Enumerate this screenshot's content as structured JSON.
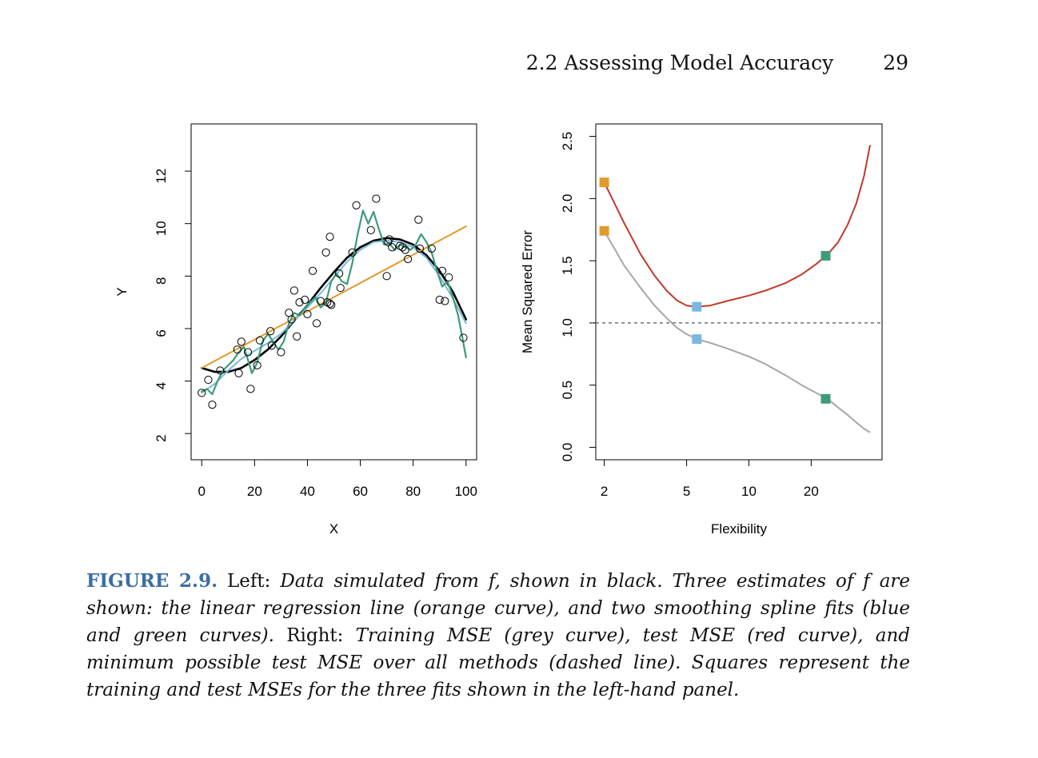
{
  "header": {
    "section": "2.2 Assessing Model Accuracy",
    "page_number": "29"
  },
  "caption": {
    "figure_label": "FIGURE 2.9.",
    "left_word": "Left:",
    "left_text": "Data simulated from f, shown in black. Three estimates of f are shown: the linear regression line (orange curve), and two smoothing spline fits (blue and green curves).",
    "right_word": "Right:",
    "right_text": "Training MSE (grey curve), test MSE (red curve), and minimum possible test MSE over all methods (dashed line). Squares represent the training and test MSEs for the three fits shown in the left-hand panel."
  },
  "colors": {
    "black": "#000000",
    "orange": "#e09b2d",
    "blue": "#7ab8de",
    "green": "#3e9a7a",
    "red": "#c0392b",
    "grey": "#a6a6a6",
    "caption_label": "#3a6ea5"
  },
  "chart_data": [
    {
      "type": "scatter",
      "xlabel": "X",
      "ylabel": "Y",
      "xlim": [
        -4,
        104
      ],
      "ylim": [
        1,
        13.8
      ],
      "xticks": [
        0,
        20,
        40,
        60,
        80,
        100
      ],
      "yticks": [
        2,
        4,
        6,
        8,
        10,
        12
      ],
      "points": [
        [
          0,
          3.55
        ],
        [
          2.5,
          4.05
        ],
        [
          4,
          3.1
        ],
        [
          7,
          4.4
        ],
        [
          13.5,
          5.2
        ],
        [
          14,
          4.3
        ],
        [
          15,
          5.5
        ],
        [
          17.5,
          5.1
        ],
        [
          18.5,
          3.7
        ],
        [
          21,
          4.6
        ],
        [
          22,
          5.55
        ],
        [
          26,
          5.9
        ],
        [
          26.5,
          5.35
        ],
        [
          30,
          5.1
        ],
        [
          33,
          6.6
        ],
        [
          34,
          6.35
        ],
        [
          35,
          7.45
        ],
        [
          36,
          5.7
        ],
        [
          37,
          7.0
        ],
        [
          39,
          7.1
        ],
        [
          40,
          6.55
        ],
        [
          42,
          8.2
        ],
        [
          43.5,
          6.2
        ],
        [
          45,
          7.05
        ],
        [
          47,
          8.9
        ],
        [
          47.5,
          7.0
        ],
        [
          48.5,
          6.95
        ],
        [
          48.5,
          9.5
        ],
        [
          49,
          6.9
        ],
        [
          52,
          8.1
        ],
        [
          52.5,
          7.55
        ],
        [
          57,
          8.9
        ],
        [
          58.5,
          10.7
        ],
        [
          64,
          9.75
        ],
        [
          66,
          10.95
        ],
        [
          70,
          8.0
        ],
        [
          70.5,
          9.3
        ],
        [
          71,
          9.4
        ],
        [
          72,
          9.1
        ],
        [
          75,
          9.15
        ],
        [
          76,
          9.1
        ],
        [
          77,
          9.0
        ],
        [
          78,
          8.65
        ],
        [
          82,
          10.15
        ],
        [
          82.5,
          9.05
        ],
        [
          87,
          9.05
        ],
        [
          90,
          7.1
        ],
        [
          91,
          8.2
        ],
        [
          92,
          7.05
        ],
        [
          93.5,
          7.95
        ],
        [
          99,
          5.65
        ]
      ],
      "series": [
        {
          "name": "f",
          "color": "black",
          "x": [
            0,
            5,
            10,
            15,
            20,
            25,
            30,
            35,
            40,
            45,
            50,
            55,
            60,
            65,
            70,
            75,
            80,
            85,
            90,
            95,
            100
          ],
          "y": [
            4.5,
            4.35,
            4.35,
            4.5,
            4.8,
            5.2,
            5.7,
            6.3,
            6.9,
            7.55,
            8.15,
            8.7,
            9.1,
            9.35,
            9.45,
            9.4,
            9.2,
            8.8,
            8.2,
            7.4,
            6.35
          ]
        },
        {
          "name": "linear regression",
          "color": "orange",
          "x": [
            0,
            100
          ],
          "y": [
            4.5,
            9.9
          ]
        },
        {
          "name": "smoothing spline (blue)",
          "color": "blue",
          "x": [
            0,
            5,
            10,
            15,
            20,
            25,
            30,
            35,
            40,
            45,
            50,
            55,
            60,
            65,
            70,
            75,
            80,
            85,
            90,
            95,
            100
          ],
          "y": [
            3.55,
            3.9,
            4.4,
            4.85,
            5.15,
            5.45,
            5.8,
            6.3,
            6.8,
            7.35,
            7.95,
            8.55,
            9.0,
            9.3,
            9.35,
            9.3,
            9.1,
            8.7,
            8.0,
            7.15,
            6.2
          ]
        },
        {
          "name": "smoothing spline (green)",
          "color": "green",
          "x": [
            0,
            2,
            4,
            6,
            8,
            10,
            12,
            14,
            16,
            17.5,
            19,
            21,
            23,
            25,
            27,
            29,
            31,
            33,
            35,
            37,
            39,
            41,
            43,
            45,
            47,
            49,
            51,
            53,
            55,
            57,
            59,
            61,
            63,
            65,
            67,
            69,
            71,
            73,
            75,
            77,
            79,
            81,
            83,
            85,
            87,
            89,
            91,
            93,
            95,
            97,
            100
          ],
          "y": [
            3.6,
            3.7,
            3.5,
            4.0,
            4.4,
            4.6,
            4.8,
            5.1,
            5.3,
            4.8,
            4.3,
            4.7,
            5.5,
            5.8,
            5.5,
            5.2,
            5.5,
            6.2,
            6.6,
            6.5,
            6.8,
            7.0,
            7.2,
            6.8,
            7.0,
            7.8,
            8.1,
            7.8,
            7.7,
            8.5,
            9.6,
            10.5,
            10.0,
            10.45,
            9.8,
            9.2,
            9.25,
            9.0,
            9.2,
            9.1,
            9.0,
            9.2,
            9.6,
            9.3,
            8.9,
            8.2,
            7.6,
            7.8,
            7.2,
            6.5,
            4.9
          ]
        }
      ]
    },
    {
      "type": "line",
      "xlabel": "Flexibility",
      "ylabel": "Mean Squared Error",
      "x_scale": "log",
      "xlim": [
        1.82,
        44
      ],
      "ylim": [
        -0.1,
        2.6
      ],
      "xticks": [
        2,
        5,
        10,
        20
      ],
      "yticks": [
        "0.0",
        "0.5",
        "1.0",
        "1.5",
        "2.0",
        "2.5"
      ],
      "hline": {
        "y": 1.0,
        "style": "dashed"
      },
      "series": [
        {
          "name": "test MSE",
          "color": "red",
          "x": [
            2,
            2.5,
            3,
            3.5,
            4,
            4.5,
            5,
            5.6,
            6.5,
            8,
            10,
            12,
            15,
            18,
            21,
            24,
            27,
            30,
            33,
            36,
            38.5
          ],
          "y": [
            2.13,
            1.8,
            1.55,
            1.38,
            1.26,
            1.18,
            1.14,
            1.13,
            1.14,
            1.18,
            1.22,
            1.26,
            1.32,
            1.39,
            1.47,
            1.55,
            1.65,
            1.79,
            1.96,
            2.18,
            2.43
          ]
        },
        {
          "name": "training MSE",
          "color": "grey",
          "x": [
            2,
            2.5,
            3,
            3.5,
            4,
            4.5,
            5,
            5.6,
            6.5,
            8,
            10,
            12,
            15,
            18,
            21,
            24,
            27,
            30,
            33,
            36,
            38.5
          ],
          "y": [
            1.74,
            1.46,
            1.28,
            1.14,
            1.04,
            0.96,
            0.91,
            0.87,
            0.84,
            0.79,
            0.73,
            0.67,
            0.58,
            0.5,
            0.44,
            0.39,
            0.32,
            0.26,
            0.2,
            0.15,
            0.12
          ]
        }
      ],
      "squares": [
        {
          "x": 2,
          "y": 2.13,
          "color": "orange"
        },
        {
          "x": 2,
          "y": 1.74,
          "color": "orange"
        },
        {
          "x": 5.6,
          "y": 1.13,
          "color": "blue"
        },
        {
          "x": 5.6,
          "y": 0.87,
          "color": "blue"
        },
        {
          "x": 23.5,
          "y": 1.54,
          "color": "green"
        },
        {
          "x": 23.5,
          "y": 0.39,
          "color": "green"
        }
      ]
    }
  ]
}
